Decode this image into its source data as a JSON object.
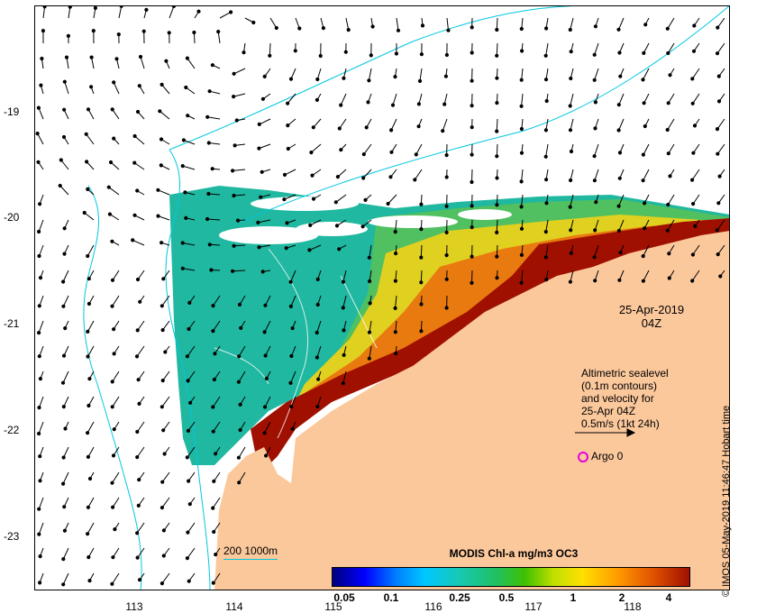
{
  "map": {
    "y_ticks": [
      "-19",
      "-20",
      "-21",
      "-22",
      "-23"
    ],
    "x_ticks": [
      "113",
      "114",
      "115",
      "116",
      "117",
      "118"
    ],
    "date_line1": "25-Apr-2019",
    "date_line2": "04Z",
    "legend_lines": [
      "Altimetric sealevel",
      "(0.1m contours)",
      "and velocity for",
      "25-Apr 04Z",
      "0.5m/s (1kt 24h)"
    ],
    "argo_label": "Argo 0",
    "credit": "© IMOS 05-May-2019 11:46:47 Hobart time",
    "depth_legend": "200  1000m",
    "colorbar": {
      "title": "MODIS Chl-a mg/m3 OC3",
      "ticks": [
        "0.05",
        "0.1",
        "0.25",
        "0.5",
        "1",
        "2",
        "4"
      ]
    },
    "colors": {
      "land": "#fbc89c",
      "bathymetry": "#00c8e0",
      "argo": "#e000e0",
      "low_chl": "#20c0a0",
      "high_chl": "#a01000"
    }
  }
}
